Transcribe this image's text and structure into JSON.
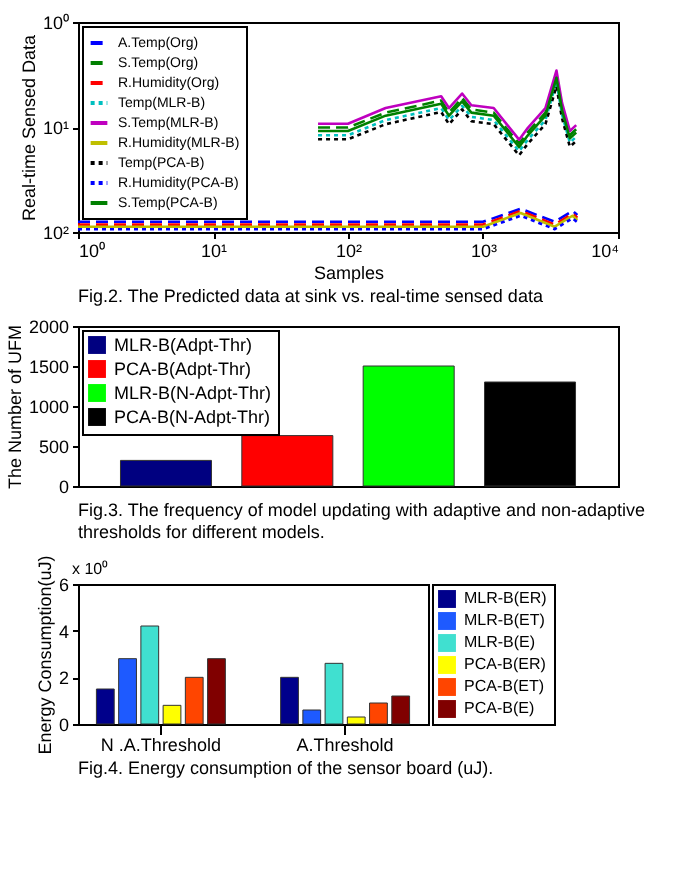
{
  "chart_data": [
    {
      "type": "line",
      "xlabel": "Samples",
      "ylabel": "Real-time Sensed Data",
      "log": "xy",
      "xlim": [
        1,
        10000
      ],
      "xticks": [
        {
          "value": 1,
          "label": "10⁰"
        },
        {
          "value": 10,
          "label": "10¹"
        },
        {
          "value": 100,
          "label": "10²"
        },
        {
          "value": 1000,
          "label": "10³"
        },
        {
          "value": 10000,
          "label": "10⁴"
        }
      ],
      "ylim": [
        100,
        1
      ],
      "yticks": [
        {
          "value": 1,
          "label": "10⁰"
        },
        {
          "value": 10,
          "label": "10¹"
        },
        {
          "value": 100,
          "label": "10²"
        }
      ],
      "legend": "top left",
      "annotations": [
        "Fig.2.  The Predicted data at sink vs. real-time sensed data"
      ],
      "series": [
        {
          "name": "A.Temp(Org)",
          "color": "#0000ff",
          "line_style": "dashed",
          "x": [
            1,
            100,
            600,
            1000,
            1900,
            3400,
            4600,
            5000
          ],
          "values": [
            80,
            80,
            80,
            80,
            60,
            80,
            63,
            69
          ]
        },
        {
          "name": "S.Temp(Org)",
          "color": "#008000",
          "line_style": "dashed",
          "x": [
            60,
            100,
            190,
            490,
            560,
            700,
            820,
            1200,
            1850,
            2150,
            2900,
            3500,
            3850,
            4400,
            4900
          ],
          "values": [
            10.1,
            10.1,
            7.3,
            5.6,
            7.3,
            5.3,
            6.8,
            7.3,
            14.4,
            11.2,
            7.3,
            3.2,
            6.4,
            11.9,
            10.5
          ]
        },
        {
          "name": "R.Humidity(Org)",
          "color": "#ff0000",
          "line_style": "dashed",
          "x": [
            1,
            100,
            600,
            1000,
            1900,
            3400,
            4600,
            5000
          ],
          "values": [
            85,
            85,
            85,
            85,
            63,
            85,
            67,
            73
          ]
        },
        {
          "name": "Temp(MLR-B)",
          "color": "#00bfbf",
          "line_style": "dotted",
          "x": [
            60,
            100,
            190,
            490,
            560,
            700,
            820,
            1200,
            1850,
            2150,
            2900,
            3500,
            3850,
            4400,
            4900
          ],
          "values": [
            12,
            12,
            8.6,
            6.6,
            8.6,
            6.3,
            8,
            8.6,
            17,
            13.2,
            8.6,
            3.7,
            7.6,
            14.1,
            12.4
          ]
        },
        {
          "name": "S.Temp(MLR-B)",
          "color": "#bf00bf",
          "line_style": "solid",
          "x": [
            60,
            100,
            190,
            490,
            560,
            700,
            820,
            1200,
            1850,
            2150,
            2900,
            3500,
            3850,
            4400,
            4900
          ],
          "values": [
            9.3,
            9.3,
            6.6,
            5.1,
            6.6,
            4.8,
            6.2,
            6.6,
            13.2,
            10.2,
            6.6,
            2.9,
            5.9,
            10.9,
            9.6
          ]
        },
        {
          "name": "R.Humidity(MLR-B)",
          "color": "#bfbf00",
          "line_style": "solid",
          "x": [
            1,
            100,
            600,
            1000,
            1900,
            3400,
            4600,
            5000
          ],
          "values": [
            89,
            89,
            89,
            89,
            66,
            89,
            70,
            77
          ]
        },
        {
          "name": "Temp(PCA-B)",
          "color": "#000000",
          "line_style": "dotted",
          "x": [
            60,
            100,
            190,
            490,
            560,
            700,
            820,
            1200,
            1850,
            2150,
            2900,
            3500,
            3850,
            4400,
            4900
          ],
          "values": [
            13.1,
            13.1,
            9.4,
            7.2,
            9.4,
            6.8,
            8.8,
            9.4,
            18.6,
            14.4,
            9.4,
            4.1,
            8.3,
            15.4,
            13.6
          ]
        },
        {
          "name": "R.Humidity(PCA-B)",
          "color": "#0000ff",
          "line_style": "dotted",
          "x": [
            1,
            100,
            600,
            1000,
            1900,
            3400,
            4600,
            5000
          ],
          "values": [
            94,
            94,
            94,
            94,
            70,
            94,
            74,
            81
          ]
        },
        {
          "name": "S.Temp(PCA-B)",
          "color": "#008000",
          "line_style": "solid",
          "x": [
            60,
            100,
            190,
            490,
            560,
            700,
            820,
            1200,
            1850,
            2150,
            2900,
            3500,
            3850,
            4400,
            4900
          ],
          "values": [
            10.9,
            10.9,
            7.8,
            6,
            7.8,
            5.7,
            7.3,
            7.8,
            15.5,
            12,
            7.8,
            3.4,
            6.9,
            12.8,
            11.3
          ]
        }
      ]
    },
    {
      "type": "bar",
      "ylabel": "The Number of UFM",
      "categories": [
        null,
        null,
        null,
        null
      ],
      "stacked": true,
      "series": [
        {
          "name": "MLR-B(Adpt-Thr)",
          "color": "#000080",
          "values": [
            320,
            0,
            0,
            0
          ]
        },
        {
          "name": "PCA-B(Adpt-Thr)",
          "color": "#ff0000",
          "values": [
            0,
            630,
            0,
            0
          ]
        },
        {
          "name": "MLR-B(N-Adpt-Thr)",
          "color": "#00ff00",
          "values": [
            0,
            0,
            1500,
            0
          ]
        },
        {
          "name": "PCA-B(N-Adpt-Thr)",
          "color": "#000000",
          "values": [
            0,
            0,
            0,
            1300
          ]
        }
      ],
      "ylim": [
        0,
        2000
      ],
      "yticks": [
        0,
        500,
        1000,
        1500,
        2000
      ],
      "tick_labels": "y",
      "legend": "top left",
      "annotations": [
        "Fig.3.  The frequency of model updating with adaptive and non-adaptive thresholds for different models."
      ]
    },
    {
      "type": "bar",
      "ylabel": "Energy Consumption(uJ)",
      "categories": [
        "N .A.Threshold",
        "A.Threshold"
      ],
      "ylim": [
        0,
        6
      ],
      "yticks": [
        0,
        2,
        4,
        6
      ],
      "legend": "right",
      "annotations": [
        "Fig.4.     Energy consumption of the sensor board (uJ).",
        "x 10⁰"
      ],
      "series": [
        {
          "name": "MLR-B(ER)",
          "color": "#00008b",
          "values": [
            1.5,
            2.0
          ]
        },
        {
          "name": "MLR-B(ET)",
          "color": "#1e5aff",
          "values": [
            2.8,
            0.6
          ]
        },
        {
          "name": "MLR-B(E)",
          "color": "#40e0d0",
          "values": [
            4.2,
            2.6
          ]
        },
        {
          "name": "PCA-B(ER)",
          "color": "#ffff00",
          "values": [
            0.8,
            0.3
          ]
        },
        {
          "name": "PCA-B(ET)",
          "color": "#ff4500",
          "values": [
            2.0,
            0.9
          ]
        },
        {
          "name": "PCA-B(E)",
          "color": "#800000",
          "values": [
            2.8,
            1.2
          ]
        }
      ]
    }
  ]
}
